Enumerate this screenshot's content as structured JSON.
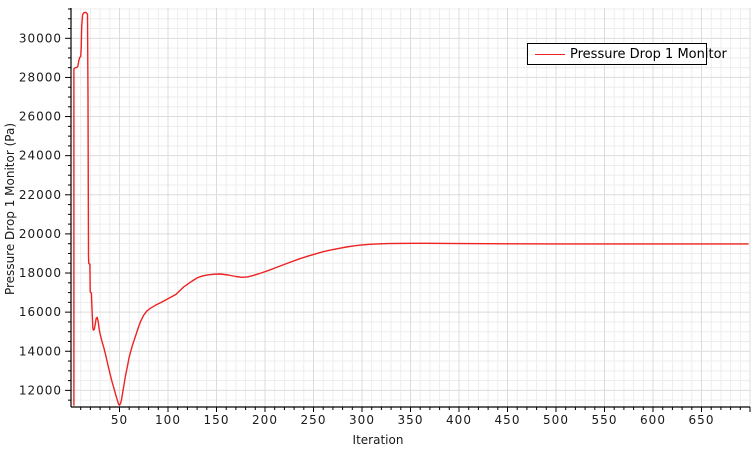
{
  "chart_data": {
    "type": "line",
    "title": "",
    "xlabel": "Iteration",
    "ylabel": "Pressure Drop 1 Monitor (Pa)",
    "grid": true,
    "legend": {
      "position": "top-right",
      "entries": [
        {
          "label": "Pressure Drop 1 Monitor",
          "color": "#ee2222"
        }
      ]
    },
    "x_axis": {
      "min": 0,
      "max": 700,
      "minor_step": 10,
      "major_step": 50,
      "tick_labels": [
        50,
        100,
        150,
        200,
        250,
        300,
        350,
        400,
        450,
        500,
        550,
        600,
        650
      ]
    },
    "y_axis": {
      "min": 11150,
      "max": 31550,
      "minor_step": 500,
      "major_step": 2000,
      "tick_labels": [
        12000,
        14000,
        16000,
        18000,
        20000,
        22000,
        24000,
        26000,
        28000,
        30000
      ]
    },
    "series": [
      {
        "name": "Pressure Drop 1 Monitor",
        "color": "#ee2222",
        "points": [
          [
            3,
            11240
          ],
          [
            3,
            28430
          ],
          [
            4,
            28480
          ],
          [
            6,
            28520
          ],
          [
            7,
            28560
          ],
          [
            8,
            28850
          ],
          [
            9,
            29030
          ],
          [
            10,
            29060
          ],
          [
            10.5,
            29500
          ],
          [
            11,
            30600
          ],
          [
            12,
            31200
          ],
          [
            13,
            31300
          ],
          [
            15,
            31330
          ],
          [
            16,
            31300
          ],
          [
            17,
            31230
          ],
          [
            17.5,
            27000
          ],
          [
            18,
            18800
          ],
          [
            18.3,
            18480
          ],
          [
            19.5,
            18450
          ],
          [
            19.8,
            17030
          ],
          [
            21,
            16980
          ],
          [
            21.5,
            16300
          ],
          [
            22.5,
            15220
          ],
          [
            23,
            15080
          ],
          [
            24,
            15120
          ],
          [
            25,
            15400
          ],
          [
            26,
            15680
          ],
          [
            27,
            15730
          ],
          [
            28,
            15520
          ],
          [
            29,
            15150
          ],
          [
            30,
            14880
          ],
          [
            32,
            14500
          ],
          [
            34,
            14150
          ],
          [
            36,
            13750
          ],
          [
            38,
            13300
          ],
          [
            40,
            12900
          ],
          [
            42,
            12500
          ],
          [
            44,
            12150
          ],
          [
            46,
            11800
          ],
          [
            48,
            11450
          ],
          [
            49,
            11300
          ],
          [
            50,
            11240
          ],
          [
            51,
            11330
          ],
          [
            52,
            11500
          ],
          [
            54,
            12100
          ],
          [
            56,
            12700
          ],
          [
            58,
            13200
          ],
          [
            60,
            13700
          ],
          [
            63,
            14250
          ],
          [
            66,
            14700
          ],
          [
            69,
            15150
          ],
          [
            72,
            15550
          ],
          [
            75,
            15850
          ],
          [
            78,
            16050
          ],
          [
            82,
            16200
          ],
          [
            87,
            16350
          ],
          [
            93,
            16500
          ],
          [
            100,
            16680
          ],
          [
            108,
            16900
          ],
          [
            116,
            17280
          ],
          [
            124,
            17560
          ],
          [
            130,
            17750
          ],
          [
            136,
            17860
          ],
          [
            142,
            17910
          ],
          [
            148,
            17940
          ],
          [
            154,
            17950
          ],
          [
            162,
            17900
          ],
          [
            170,
            17820
          ],
          [
            176,
            17780
          ],
          [
            182,
            17800
          ],
          [
            188,
            17880
          ],
          [
            196,
            18000
          ],
          [
            204,
            18140
          ],
          [
            212,
            18290
          ],
          [
            220,
            18440
          ],
          [
            228,
            18590
          ],
          [
            236,
            18730
          ],
          [
            244,
            18860
          ],
          [
            252,
            18980
          ],
          [
            260,
            19090
          ],
          [
            268,
            19180
          ],
          [
            276,
            19260
          ],
          [
            284,
            19330
          ],
          [
            292,
            19390
          ],
          [
            300,
            19440
          ],
          [
            308,
            19470
          ],
          [
            316,
            19490
          ],
          [
            326,
            19505
          ],
          [
            338,
            19515
          ],
          [
            352,
            19520
          ],
          [
            368,
            19518
          ],
          [
            385,
            19512
          ],
          [
            405,
            19505
          ],
          [
            430,
            19498
          ],
          [
            460,
            19492
          ],
          [
            500,
            19490
          ],
          [
            550,
            19488
          ],
          [
            600,
            19487
          ],
          [
            650,
            19487
          ],
          [
            698,
            19487
          ]
        ]
      }
    ],
    "colors": {
      "series": "#ee2222",
      "axis": "#000000",
      "grid_minor": "#ededed",
      "grid_major": "#dcdcdc",
      "background": "#ffffff",
      "text": "#1a1a1a"
    }
  }
}
